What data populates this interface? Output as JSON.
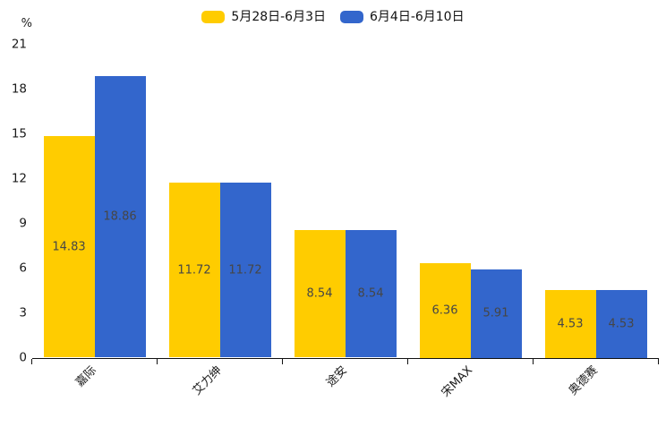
{
  "chart_data": {
    "type": "bar",
    "title": "",
    "xlabel": "",
    "ylabel": "",
    "y_unit": "%",
    "ylim": [
      0,
      21
    ],
    "y_ticks": [
      0,
      3,
      6,
      9,
      12,
      15,
      18,
      21
    ],
    "categories": [
      "嘉际",
      "艾力绅",
      "途安",
      "宋MAX",
      "奥德赛"
    ],
    "series": [
      {
        "name": "5月28日-6月3日",
        "color": "#FFCC00",
        "values": [
          14.83,
          11.72,
          8.54,
          6.36,
          4.53
        ]
      },
      {
        "name": "6月4日-6月10日",
        "color": "#3366CC",
        "values": [
          18.86,
          11.72,
          8.54,
          5.91,
          4.53
        ]
      }
    ],
    "legend_position": "top",
    "grid": false,
    "bar_value_labels_inside": true,
    "value_label_color": "#464646",
    "axis_color": "#111111",
    "text_color": "#1a1a1a"
  }
}
